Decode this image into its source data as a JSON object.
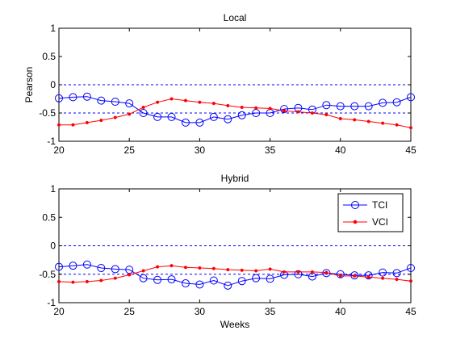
{
  "chart_data": [
    {
      "type": "line",
      "title": "Local",
      "xlabel": "",
      "ylabel": "Pearson",
      "xlim": [
        20,
        45
      ],
      "ylim": [
        -1,
        1
      ],
      "xticks": [
        20,
        25,
        30,
        35,
        40,
        45
      ],
      "yticks": [
        -1,
        -0.5,
        0,
        0.5,
        1
      ],
      "reference_lines": [
        0,
        -0.5
      ],
      "x": [
        20,
        21,
        22,
        23,
        24,
        25,
        26,
        27,
        28,
        29,
        30,
        31,
        32,
        33,
        34,
        35,
        36,
        37,
        38,
        39,
        40,
        41,
        42,
        43,
        44,
        45
      ],
      "series": [
        {
          "name": "TCI",
          "color": "#0000ff",
          "marker": "circle",
          "values": [
            -0.24,
            -0.22,
            -0.21,
            -0.28,
            -0.3,
            -0.33,
            -0.5,
            -0.57,
            -0.57,
            -0.67,
            -0.67,
            -0.57,
            -0.61,
            -0.54,
            -0.5,
            -0.5,
            -0.43,
            -0.41,
            -0.44,
            -0.36,
            -0.38,
            -0.38,
            -0.38,
            -0.32,
            -0.31,
            -0.22
          ]
        },
        {
          "name": "VCI",
          "color": "#ff0000",
          "marker": "dot",
          "values": [
            -0.71,
            -0.71,
            -0.67,
            -0.63,
            -0.58,
            -0.52,
            -0.4,
            -0.31,
            -0.25,
            -0.28,
            -0.31,
            -0.33,
            -0.37,
            -0.4,
            -0.41,
            -0.42,
            -0.46,
            -0.48,
            -0.5,
            -0.53,
            -0.6,
            -0.62,
            -0.65,
            -0.68,
            -0.71,
            -0.76
          ]
        }
      ]
    },
    {
      "type": "line",
      "title": "Hybrid",
      "xlabel": "Weeks",
      "ylabel": "",
      "xlim": [
        20,
        45
      ],
      "ylim": [
        -1,
        1
      ],
      "xticks": [
        20,
        25,
        30,
        35,
        40,
        45
      ],
      "yticks": [
        -1,
        -0.5,
        0,
        0.5,
        1
      ],
      "reference_lines": [
        0,
        -0.5
      ],
      "legend": {
        "position": "top-right",
        "entries": [
          "TCI",
          "VCI"
        ]
      },
      "x": [
        20,
        21,
        22,
        23,
        24,
        25,
        26,
        27,
        28,
        29,
        30,
        31,
        32,
        33,
        34,
        35,
        36,
        37,
        38,
        39,
        40,
        41,
        42,
        43,
        44,
        45
      ],
      "series": [
        {
          "name": "TCI",
          "color": "#0000ff",
          "marker": "circle",
          "values": [
            -0.37,
            -0.35,
            -0.33,
            -0.39,
            -0.41,
            -0.42,
            -0.57,
            -0.6,
            -0.59,
            -0.66,
            -0.68,
            -0.61,
            -0.7,
            -0.62,
            -0.57,
            -0.58,
            -0.51,
            -0.5,
            -0.54,
            -0.48,
            -0.5,
            -0.52,
            -0.52,
            -0.47,
            -0.48,
            -0.39
          ]
        },
        {
          "name": "VCI",
          "color": "#ff0000",
          "marker": "dot",
          "values": [
            -0.63,
            -0.64,
            -0.63,
            -0.61,
            -0.57,
            -0.51,
            -0.44,
            -0.37,
            -0.35,
            -0.38,
            -0.39,
            -0.4,
            -0.42,
            -0.43,
            -0.44,
            -0.41,
            -0.46,
            -0.46,
            -0.46,
            -0.47,
            -0.53,
            -0.53,
            -0.55,
            -0.57,
            -0.59,
            -0.62
          ]
        }
      ]
    }
  ]
}
